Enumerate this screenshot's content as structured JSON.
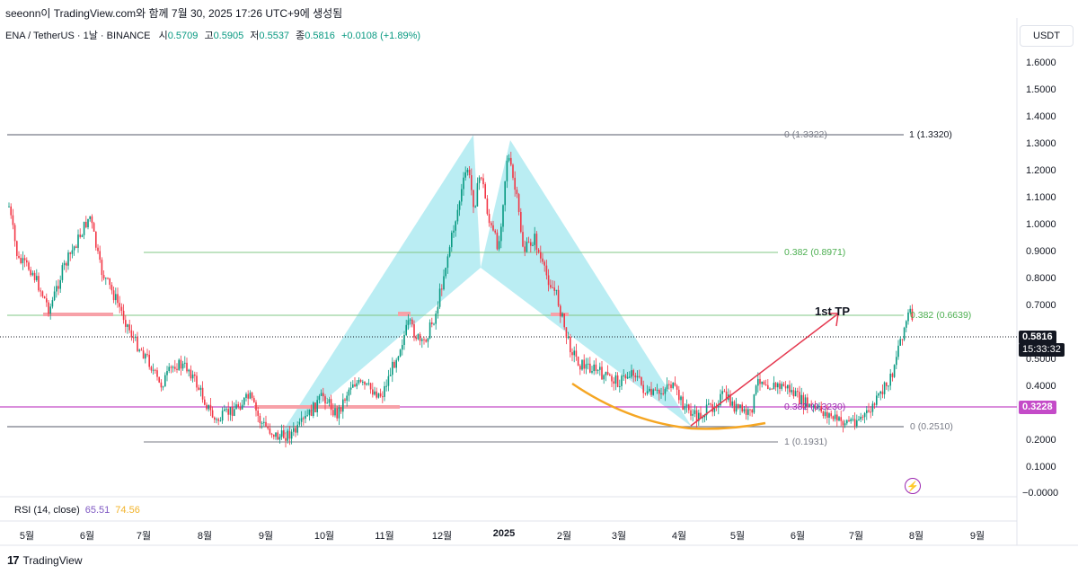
{
  "header": {
    "title": "seeonn이 TradingView.com와 함께 7월 30, 2025 17:26 UTC+9에 생성됨"
  },
  "symbol": {
    "name": "ENA / TetherUS · 1날 · BINANCE",
    "open_label": "시",
    "open": "0.5709",
    "high_label": "고",
    "high": "0.5905",
    "low_label": "저",
    "low": "0.5537",
    "close_label": "종",
    "close": "0.5816",
    "change": "+0.0108 (+1.89%)"
  },
  "currency": "USDT",
  "y_axis": {
    "ticks": [
      "1.6000",
      "1.5000",
      "1.4000",
      "1.3000",
      "1.2000",
      "1.1000",
      "1.0000",
      "0.9000",
      "0.8000",
      "0.7000",
      "0.5000",
      "0.4000",
      "0.2000",
      "0.1000",
      "−0.0000"
    ]
  },
  "price_tags": {
    "last": "0.5816",
    "countdown": "15:33:32",
    "level": "0.3228"
  },
  "x_axis": {
    "months": [
      "5월",
      "6월",
      "7월",
      "8월",
      "9월",
      "10월",
      "11월",
      "12월",
      "2025",
      "2월",
      "3월",
      "4월",
      "5월",
      "6월",
      "7월",
      "8월",
      "9월"
    ]
  },
  "fib_labels": {
    "f0_top": "0 (1.3322)",
    "f1_top": "1 (1.3320)",
    "f382_top": "0.382 (0.8971)",
    "f382_right": "0.382 (0.6639)",
    "f382_low": "0.382 (0.3230)",
    "f0_low": "0 (0.2510)",
    "f1_low": "1 (0.1931)"
  },
  "annotation": {
    "tp": "1st TP"
  },
  "rsi": {
    "label": "RSI (14, close)",
    "value1": "65.51",
    "value2": "74.56"
  },
  "footer": {
    "brand": "TradingView"
  },
  "colors": {
    "up": "#089981",
    "down": "#f23645",
    "pattern_fill": "#b2ebf2",
    "fib_green": "#81c784",
    "fib_gray": "#787b86",
    "support_magenta": "#c44bc8",
    "arrow_red": "#e53950",
    "curve_orange": "#f5a623",
    "zone_red": "#f7a1a8"
  }
}
